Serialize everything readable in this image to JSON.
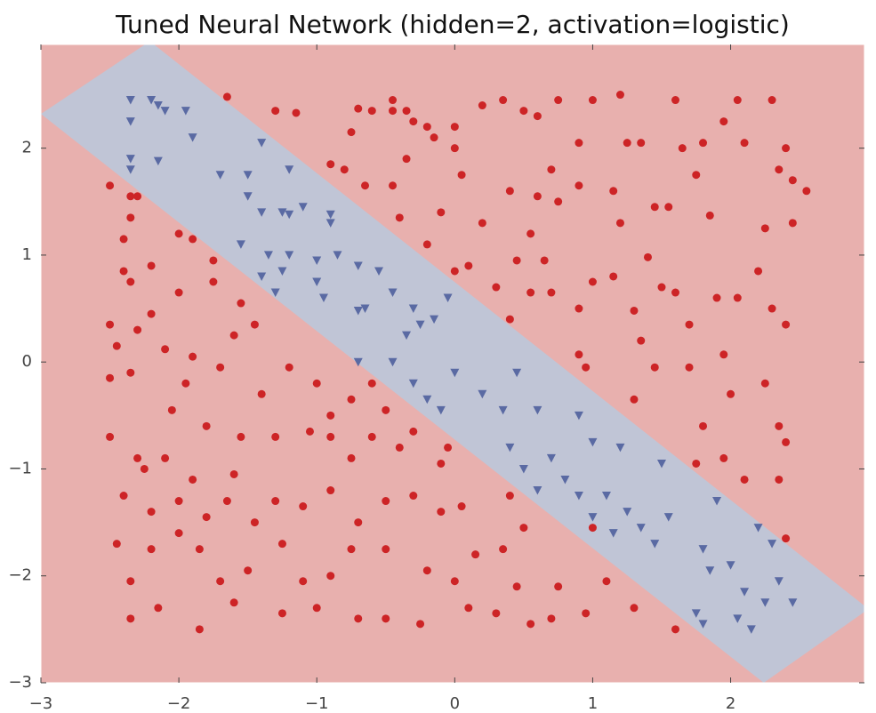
{
  "chart_data": {
    "type": "scatter",
    "title": "Tuned Neural Network (hidden=2, activation=logistic)",
    "xlim": [
      -3,
      2.97
    ],
    "ylim": [
      -3,
      2.97
    ],
    "xticks": [
      {
        "value": -3,
        "label": "−3"
      },
      {
        "value": -2,
        "label": "−2"
      },
      {
        "value": -1,
        "label": "−1"
      },
      0,
      1,
      2
    ],
    "yticks": [
      {
        "value": -3,
        "label": "−3"
      },
      {
        "value": -2,
        "label": "−2"
      },
      {
        "value": -1,
        "label": "−1"
      },
      0,
      1,
      2
    ],
    "background_color": "#e8b0ae",
    "band": {
      "color": "#c0c5d6",
      "points": [
        [
          -3,
          2.32
        ],
        [
          -2.21,
          3
        ],
        [
          3,
          -2.31
        ],
        [
          2.24,
          -3
        ]
      ]
    },
    "series": [
      {
        "color": "#cd2426",
        "marker": "circle",
        "x": [
          -1.65,
          -1.3,
          -1.15,
          -0.75,
          -0.7,
          -0.6,
          -0.45,
          -0.45,
          -0.35,
          -0.3,
          -0.2,
          0.0,
          -0.15,
          0.0,
          0.2,
          0.35,
          0.5,
          0.6,
          0.75,
          0.9,
          1.0,
          1.2,
          1.25,
          1.35,
          1.6,
          1.65,
          1.8,
          1.95,
          2.05,
          2.1,
          2.3,
          2.4,
          -0.8,
          -0.9,
          -0.65,
          -0.45,
          -0.35,
          -0.1,
          0.05,
          0.2,
          0.4,
          0.6,
          0.7,
          0.75,
          0.9,
          1.15,
          1.2,
          1.45,
          1.55,
          1.75,
          1.85,
          2.25,
          2.35,
          2.45,
          2.55,
          2.45,
          -0.4,
          -0.2,
          0.0,
          0.1,
          0.3,
          0.45,
          0.55,
          0.65,
          0.7,
          0.9,
          1.0,
          1.15,
          1.3,
          1.4,
          1.5,
          1.6,
          1.7,
          1.9,
          2.05,
          2.2,
          2.3,
          2.4,
          0.9,
          1.35,
          1.45,
          1.7,
          1.95,
          2.0,
          2.25,
          2.35,
          2.4,
          1.3,
          0.95,
          1.8,
          1.75,
          1.95,
          2.1,
          2.35,
          2.4,
          0.4,
          0.55,
          -2.5,
          -2.35,
          -2.3,
          -2.35,
          -2.4,
          -2.4,
          -2.35,
          -2.2,
          -2.0,
          -1.9,
          -1.75,
          -2.0,
          -1.75,
          -1.55,
          -2.5,
          -2.45,
          -2.3,
          -2.2,
          -2.1,
          -2.35,
          -2.5,
          -1.95,
          -1.9,
          -1.7,
          -1.6,
          -1.45,
          -1.4,
          -1.2,
          -1.0,
          -0.9,
          -0.75,
          -0.5,
          -0.6,
          -2.5,
          -2.3,
          -2.25,
          -2.4,
          -2.1,
          -2.05,
          -1.9,
          -1.8,
          -1.6,
          -1.55,
          -1.3,
          -1.05,
          -0.9,
          -0.75,
          -0.6,
          -0.4,
          -0.3,
          -0.1,
          -2.2,
          -2.0,
          -1.8,
          -1.65,
          -1.45,
          -1.3,
          -1.1,
          -0.9,
          -0.7,
          -0.5,
          -0.3,
          -0.1,
          0.05,
          -2.45,
          -2.35,
          -2.2,
          -2.0,
          -1.85,
          -1.7,
          -1.5,
          -1.25,
          -1.1,
          -0.9,
          -0.75,
          -0.5,
          -0.2,
          0.0,
          0.15,
          0.35,
          0.5,
          0.75,
          -2.35,
          -2.15,
          -1.85,
          -1.6,
          -1.25,
          -1.0,
          -0.7,
          -0.5,
          -0.25,
          0.1,
          0.3,
          0.55,
          0.7,
          0.95,
          1.3,
          1.6,
          1.0,
          1.1,
          0.45,
          -0.05,
          0.4
        ],
        "y": [
          2.48,
          2.35,
          2.33,
          2.15,
          2.37,
          2.35,
          2.35,
          2.45,
          2.35,
          2.25,
          2.2,
          2.2,
          2.1,
          2.0,
          2.4,
          2.45,
          2.35,
          2.3,
          2.45,
          2.05,
          2.45,
          2.5,
          2.05,
          2.05,
          2.45,
          2.0,
          2.05,
          2.25,
          2.45,
          2.05,
          2.45,
          2.0,
          1.8,
          1.85,
          1.65,
          1.65,
          1.9,
          1.4,
          1.75,
          1.3,
          1.6,
          1.55,
          1.8,
          1.5,
          1.65,
          1.6,
          1.3,
          1.45,
          1.45,
          1.75,
          1.37,
          1.25,
          1.8,
          1.7,
          1.6,
          1.3,
          1.35,
          1.1,
          0.85,
          0.9,
          0.7,
          0.95,
          1.2,
          0.95,
          0.65,
          0.5,
          0.75,
          0.8,
          0.48,
          0.98,
          0.7,
          0.65,
          0.35,
          0.6,
          0.6,
          0.85,
          0.5,
          0.35,
          0.07,
          0.2,
          -0.05,
          -0.05,
          0.07,
          -0.3,
          -0.2,
          -0.6,
          -0.75,
          -0.35,
          -0.05,
          -0.6,
          -0.95,
          -0.9,
          -1.1,
          -1.1,
          -1.65,
          0.4,
          0.65,
          1.65,
          1.55,
          1.55,
          1.35,
          1.15,
          0.85,
          0.75,
          0.9,
          1.2,
          1.15,
          0.95,
          0.65,
          0.75,
          0.55,
          0.35,
          0.15,
          0.3,
          0.45,
          0.12,
          -0.1,
          -0.15,
          -0.2,
          0.05,
          -0.05,
          0.25,
          0.35,
          -0.3,
          -0.05,
          -0.2,
          -0.5,
          -0.35,
          -0.45,
          -0.2,
          -0.7,
          -0.9,
          -1.0,
          -1.25,
          -0.9,
          -0.45,
          -1.1,
          -0.6,
          -1.05,
          -0.7,
          -0.7,
          -0.65,
          -0.7,
          -0.9,
          -0.7,
          -0.8,
          -0.65,
          -0.95,
          -1.4,
          -1.3,
          -1.45,
          -1.3,
          -1.5,
          -1.3,
          -1.35,
          -1.2,
          -1.5,
          -1.3,
          -1.25,
          -1.4,
          -1.35,
          -1.7,
          -2.05,
          -1.75,
          -1.6,
          -1.75,
          -2.05,
          -1.95,
          -1.7,
          -2.05,
          -2.0,
          -1.75,
          -1.75,
          -1.95,
          -2.05,
          -1.8,
          -1.75,
          -1.55,
          -2.1,
          -2.4,
          -2.3,
          -2.5,
          -2.25,
          -2.35,
          -2.3,
          -2.4,
          -2.4,
          -2.45,
          -2.3,
          -2.35,
          -2.45,
          -2.4,
          -2.35,
          -2.3,
          -2.5,
          -1.55,
          -2.05,
          -2.1,
          -0.8,
          -1.25
        ]
      },
      {
        "color": "#5a6aa3",
        "marker": "triangle",
        "x": [
          -2.35,
          -2.2,
          -2.15,
          -2.1,
          -1.95,
          -2.35,
          -2.35,
          -2.35,
          -2.15,
          -1.9,
          -1.7,
          -1.5,
          -1.4,
          -1.2,
          -1.5,
          -1.4,
          -1.25,
          -1.2,
          -1.1,
          -0.9,
          -0.9,
          -1.55,
          -1.35,
          -1.2,
          -1.0,
          -0.85,
          -1.4,
          -1.25,
          -1.3,
          -1.0,
          -0.7,
          -0.55,
          -0.45,
          -0.3,
          -0.15,
          -0.05,
          -0.95,
          -0.65,
          -0.7,
          -0.35,
          -0.25,
          -0.7,
          -0.45,
          -0.3,
          -0.2,
          -0.1,
          0.0,
          0.2,
          0.35,
          0.45,
          0.4,
          0.6,
          0.5,
          0.7,
          0.9,
          0.8,
          0.6,
          1.0,
          0.9,
          1.1,
          1.2,
          1.0,
          1.25,
          1.15,
          1.35,
          1.45,
          1.55,
          1.5,
          1.9,
          1.8,
          1.85,
          2.0,
          2.1,
          2.25,
          2.35,
          2.45,
          2.3,
          2.2,
          1.75,
          1.8,
          2.05,
          2.15
        ],
        "y": [
          2.45,
          2.45,
          2.4,
          2.35,
          2.35,
          2.25,
          1.9,
          1.8,
          1.88,
          2.1,
          1.75,
          1.75,
          2.05,
          1.8,
          1.55,
          1.4,
          1.4,
          1.38,
          1.45,
          1.38,
          1.3,
          1.1,
          1.0,
          1.0,
          0.95,
          1.0,
          0.8,
          0.85,
          0.65,
          0.75,
          0.9,
          0.85,
          0.65,
          0.5,
          0.4,
          0.6,
          0.6,
          0.5,
          0.48,
          0.25,
          0.35,
          0.0,
          0.0,
          -0.2,
          -0.35,
          -0.45,
          -0.1,
          -0.3,
          -0.45,
          -0.1,
          -0.8,
          -0.45,
          -1.0,
          -0.9,
          -0.5,
          -1.1,
          -1.2,
          -0.75,
          -1.25,
          -1.25,
          -0.8,
          -1.45,
          -1.4,
          -1.6,
          -1.55,
          -1.7,
          -1.45,
          -0.95,
          -1.3,
          -1.75,
          -1.95,
          -1.9,
          -2.15,
          -2.25,
          -2.05,
          -2.25,
          -1.7,
          -1.55,
          -2.35,
          -2.45,
          -2.4,
          -2.5
        ]
      }
    ]
  }
}
